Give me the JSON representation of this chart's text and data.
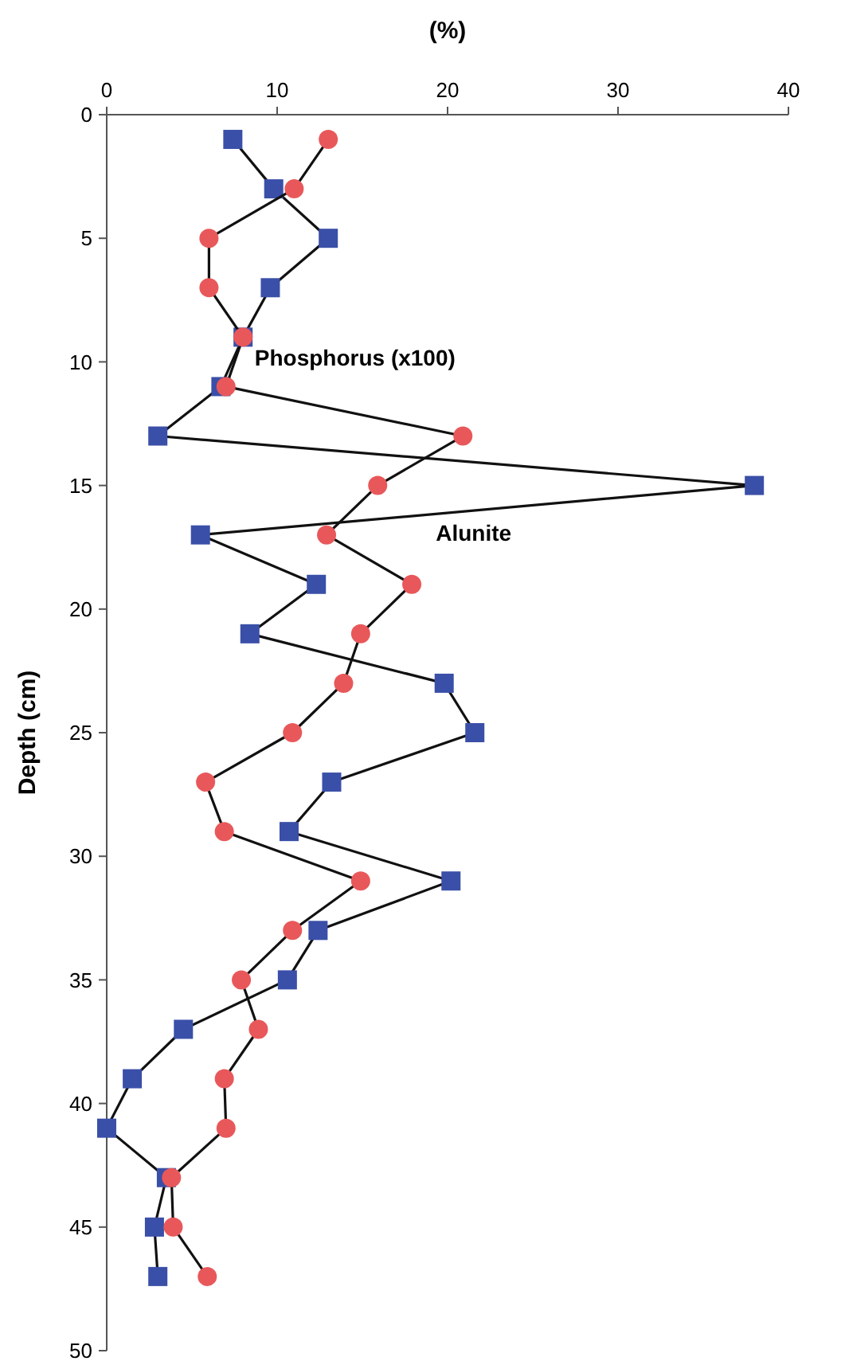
{
  "chart_data": {
    "type": "line",
    "xlabel": "(%)",
    "ylabel": "Depth (cm)",
    "xlim": [
      0,
      40
    ],
    "xticks": [
      0,
      10,
      20,
      30,
      40
    ],
    "ylim": [
      50,
      0
    ],
    "yticks": [
      0,
      5,
      10,
      15,
      20,
      25,
      30,
      35,
      40,
      45,
      50
    ],
    "grid": false,
    "line_style": "solid",
    "series": [
      {
        "name": "Phosphorus (x100)",
        "color": "#e8585a",
        "marker": "circle",
        "x": [
          13.0,
          11.0,
          6.0,
          6.0,
          8.0,
          7.0,
          20.9,
          15.9,
          12.9,
          17.9,
          14.9,
          13.9,
          10.9,
          5.8,
          6.9,
          14.9,
          10.9,
          7.9,
          8.9,
          6.9,
          7.0,
          3.8,
          3.9,
          5.9
        ],
        "values": [
          1,
          3,
          5,
          7,
          9,
          11,
          13,
          15,
          17,
          19,
          21,
          23,
          25,
          27,
          29,
          31,
          33,
          35,
          37,
          39,
          41,
          43,
          45,
          47
        ]
      },
      {
        "name": "Alunite",
        "color": "#3a4fa8",
        "marker": "square",
        "x": [
          7.4,
          9.8,
          13.0,
          9.6,
          8.0,
          6.7,
          3.0,
          38.0,
          5.5,
          12.3,
          8.4,
          19.8,
          21.6,
          13.2,
          10.7,
          20.2,
          12.4,
          10.6,
          4.5,
          1.5,
          0,
          3.5,
          2.8,
          3.0
        ],
        "values": [
          1,
          3,
          5,
          7,
          9,
          11,
          13,
          15,
          17,
          19,
          21,
          23,
          25,
          27,
          29,
          31,
          33,
          35,
          37,
          39,
          41,
          43,
          45,
          47
        ]
      }
    ]
  }
}
